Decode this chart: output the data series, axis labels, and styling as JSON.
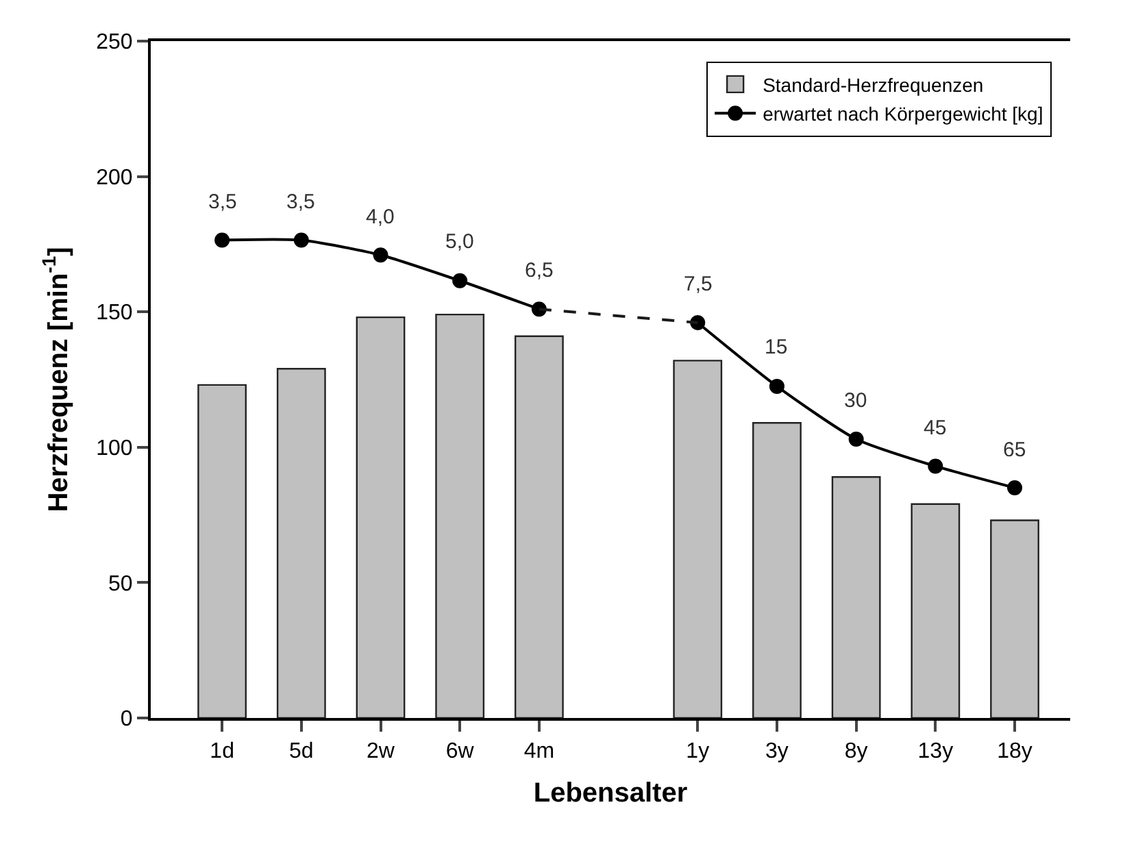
{
  "chart_data": {
    "type": "bar",
    "xlabel": "Lebensalter",
    "ylabel": "Herzfrequenz [min$^{-1}$]",
    "categories": [
      "1d",
      "5d",
      "2w",
      "6w",
      "4m",
      null,
      "1y",
      "3y",
      "8y",
      "13y",
      "18y"
    ],
    "series": [
      {
        "name": "Standard-Herzfrequenzen",
        "color": "#c0c0c0",
        "values": [
          123,
          129,
          148,
          149,
          141,
          null,
          132,
          109,
          89,
          79,
          73
        ]
      },
      {
        "name": "erwartet nach Körpergewicht [kg]",
        "type": "line",
        "color": "#000000",
        "marker": "circle",
        "line_style": "solid",
        "values": [
          176.5,
          176.5,
          171,
          161.5,
          151,
          null,
          146,
          122.5,
          103,
          93,
          85
        ]
      },
      {
        "type": "line",
        "color": "#1a1a1a",
        "marker": "none",
        "line_style": "dashed",
        "x": [
          "4m",
          "1y"
        ],
        "values": [
          151,
          146
        ]
      }
    ],
    "annotations": [
      {
        "text": "3,5",
        "x": "1d",
        "y": 176.5
      },
      {
        "text": "3,5",
        "x": "5d",
        "y": 176.5
      },
      {
        "text": "4,0",
        "x": "2w",
        "y": 171
      },
      {
        "text": "5,0",
        "x": "6w",
        "y": 161.5
      },
      {
        "text": "6,5",
        "x": "4m",
        "y": 151
      },
      {
        "text": "7,5",
        "x": "1y",
        "y": 146
      },
      {
        "text": "15",
        "x": "3y",
        "y": 122.5
      },
      {
        "text": "30",
        "x": "8y",
        "y": 103
      },
      {
        "text": "45",
        "x": "13y",
        "y": 93
      },
      {
        "text": "65",
        "x": "18y",
        "y": 85
      }
    ],
    "ylim": [
      0,
      250
    ],
    "yticks": [
      0,
      50,
      100,
      150,
      200,
      250
    ],
    "grid": false,
    "legend": "top right"
  }
}
